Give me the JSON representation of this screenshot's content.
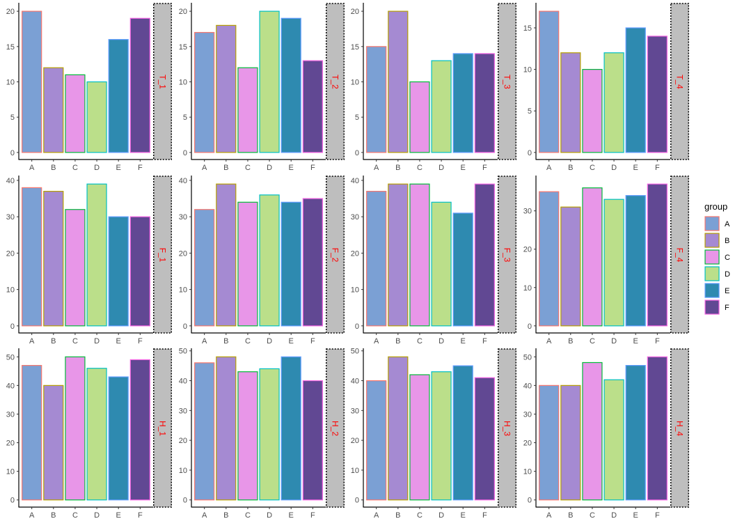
{
  "chart_data": {
    "type": "bar",
    "facet_layout": "grid 3 rows x 4 columns, free y scales, strip on right",
    "categories": [
      "A",
      "B",
      "C",
      "D",
      "E",
      "F"
    ],
    "legend": {
      "title": "group",
      "position": "right",
      "entries": [
        "A",
        "B",
        "C",
        "D",
        "E",
        "F"
      ]
    },
    "fill_colors": [
      "#7BA0D4",
      "#A58AD2",
      "#E896E8",
      "#BBDF8A",
      "#2E8AB0",
      "#614893"
    ],
    "outline_colors": [
      "#F8766D",
      "#B79F00",
      "#00BA38",
      "#00BFC4",
      "#619CFF",
      "#F564E3"
    ],
    "strip_style": {
      "background": "#BEBEBE",
      "text_color": "#FF0000",
      "border": "dotted black"
    },
    "grid": false,
    "panels": [
      {
        "label": "T_1",
        "values": [
          20,
          12,
          11,
          10,
          16,
          19
        ],
        "ticks": [
          0,
          5,
          10,
          15,
          20
        ],
        "ylim": [
          0,
          20
        ]
      },
      {
        "label": "T_2",
        "values": [
          17,
          18,
          12,
          20,
          19,
          13
        ],
        "ticks": [
          0,
          5,
          10,
          15,
          20
        ],
        "ylim": [
          0,
          20
        ]
      },
      {
        "label": "T_3",
        "values": [
          15,
          20,
          10,
          13,
          14,
          14
        ],
        "ticks": [
          0,
          5,
          10,
          15,
          20
        ],
        "ylim": [
          0,
          20
        ]
      },
      {
        "label": "T_4",
        "values": [
          17,
          12,
          10,
          12,
          15,
          14
        ],
        "ticks": [
          0,
          5,
          10,
          15
        ],
        "ylim": [
          0,
          17
        ]
      },
      {
        "label": "F_1",
        "values": [
          38,
          37,
          32,
          39,
          30,
          30
        ],
        "ticks": [
          0,
          10,
          20,
          30,
          40
        ],
        "ylim": [
          0,
          39
        ]
      },
      {
        "label": "F_2",
        "values": [
          32,
          39,
          34,
          36,
          34,
          35
        ],
        "ticks": [
          0,
          10,
          20,
          30,
          40
        ],
        "ylim": [
          0,
          39
        ]
      },
      {
        "label": "F_3",
        "values": [
          37,
          39,
          39,
          34,
          31,
          39
        ],
        "ticks": [
          0,
          10,
          20,
          30,
          40
        ],
        "ylim": [
          0,
          39
        ]
      },
      {
        "label": "F_4",
        "values": [
          35,
          31,
          36,
          33,
          34,
          37
        ],
        "ticks": [
          0,
          10,
          20,
          30
        ],
        "ylim": [
          0,
          37
        ]
      },
      {
        "label": "H_1",
        "values": [
          47,
          40,
          50,
          46,
          43,
          49
        ],
        "ticks": [
          0,
          10,
          20,
          30,
          40,
          50
        ],
        "ylim": [
          0,
          50
        ]
      },
      {
        "label": "H_2",
        "values": [
          46,
          48,
          43,
          44,
          48,
          40
        ],
        "ticks": [
          0,
          10,
          20,
          30,
          40,
          50
        ],
        "ylim": [
          0,
          48
        ]
      },
      {
        "label": "H_3",
        "values": [
          40,
          48,
          42,
          43,
          45,
          41
        ],
        "ticks": [
          0,
          10,
          20,
          30,
          40,
          50
        ],
        "ylim": [
          0,
          48
        ]
      },
      {
        "label": "H_4",
        "values": [
          40,
          40,
          48,
          42,
          47,
          50
        ],
        "ticks": [
          0,
          10,
          20,
          30,
          40,
          50
        ],
        "ylim": [
          0,
          50
        ]
      }
    ]
  }
}
